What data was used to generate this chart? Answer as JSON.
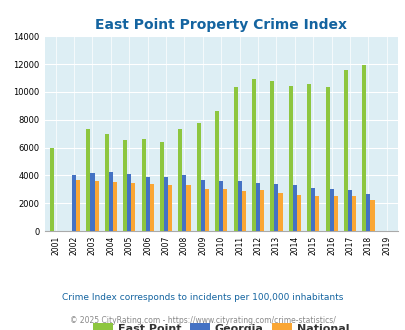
{
  "title": "East Point Property Crime Index",
  "years": [
    2001,
    2002,
    2003,
    2004,
    2005,
    2006,
    2007,
    2008,
    2009,
    2010,
    2011,
    2012,
    2013,
    2014,
    2015,
    2016,
    2017,
    2018,
    2019
  ],
  "east_point": [
    6000,
    null,
    7300,
    6950,
    6550,
    6650,
    6400,
    7300,
    7750,
    8650,
    10350,
    10900,
    10800,
    10450,
    10600,
    10350,
    11600,
    11950,
    null
  ],
  "georgia": [
    null,
    4050,
    4200,
    4250,
    4100,
    3900,
    3900,
    4050,
    3700,
    3600,
    3600,
    3450,
    3400,
    3300,
    3100,
    3000,
    2950,
    2650,
    null
  ],
  "national": [
    null,
    3650,
    3600,
    3500,
    3450,
    3350,
    3300,
    3300,
    3050,
    3000,
    2900,
    2950,
    2700,
    2600,
    2550,
    2500,
    2500,
    2250,
    null
  ],
  "east_point_color": "#8dc63f",
  "georgia_color": "#4472c4",
  "national_color": "#faa634",
  "bg_color": "#ddeef4",
  "title_color": "#1464a0",
  "ylim": [
    0,
    14000
  ],
  "yticks": [
    0,
    2000,
    4000,
    6000,
    8000,
    10000,
    12000,
    14000
  ],
  "subtitle": "Crime Index corresponds to incidents per 100,000 inhabitants",
  "footer": "© 2025 CityRating.com - https://www.cityrating.com/crime-statistics/",
  "legend_labels": [
    "East Point",
    "Georgia",
    "National"
  ],
  "bar_width": 0.22
}
